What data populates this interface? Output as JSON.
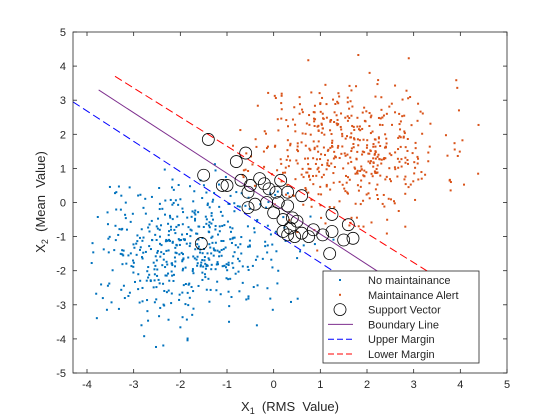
{
  "chart_data": {
    "type": "scatter",
    "xlabel": "X",
    "xlabel_sub": "1",
    "xlabel_rest": "  (RMS  Value)",
    "ylabel": "X",
    "ylabel_sub": "2",
    "ylabel_rest": "  (Mean  Value)",
    "xlim": [
      -4.3,
      5
    ],
    "ylim": [
      -5,
      5
    ],
    "xticks": [
      -4,
      -3,
      -2,
      -1,
      0,
      1,
      2,
      3,
      4,
      5
    ],
    "yticks": [
      -5,
      -4,
      -3,
      -2,
      -1,
      0,
      1,
      2,
      3,
      4,
      5
    ],
    "grid": false,
    "legend_position": "bottom-right",
    "colors": {
      "no_maintainance": "#0072BD",
      "maintainance_alert": "#D95319",
      "support_vector": "#000000",
      "boundary": "#7E2F8E",
      "upper_margin": "#0000FF",
      "lower_margin": "#FF0000",
      "axes": "#262626"
    },
    "series": [
      {
        "name": "No maintainance",
        "kind": "points",
        "distribution": {
          "n": 500,
          "mean": [
            -1.8,
            -1.4
          ],
          "std": [
            1.0,
            1.0
          ],
          "seed": 7
        },
        "range": {
          "x": [
            -3.9,
            1.3
          ],
          "y": [
            -4.6,
            1.5
          ]
        }
      },
      {
        "name": "Maintainance Alert",
        "kind": "points",
        "distribution": {
          "n": 500,
          "mean": [
            1.6,
            1.6
          ],
          "std": [
            1.0,
            1.0
          ],
          "seed": 11
        },
        "range": {
          "x": [
            -0.9,
            4.6
          ],
          "y": [
            -1.6,
            4.5
          ]
        }
      },
      {
        "name": "Support Vector",
        "kind": "circles",
        "points": [
          [
            -1.4,
            1.85
          ],
          [
            -0.8,
            1.2
          ],
          [
            -0.6,
            1.45
          ],
          [
            -1.5,
            0.8
          ],
          [
            -1.0,
            0.5
          ],
          [
            -1.1,
            0.5
          ],
          [
            -0.7,
            0.65
          ],
          [
            -0.5,
            0.5
          ],
          [
            -0.3,
            0.7
          ],
          [
            -0.2,
            0.55
          ],
          [
            -0.1,
            0.4
          ],
          [
            0.05,
            0.3
          ],
          [
            0.3,
            0.3
          ],
          [
            0.6,
            0.2
          ],
          [
            0.15,
            0.65
          ],
          [
            -0.55,
            0.3
          ],
          [
            -0.55,
            -0.15
          ],
          [
            -0.4,
            -0.05
          ],
          [
            -0.15,
            0.0
          ],
          [
            0.1,
            0.0
          ],
          [
            0.3,
            -0.1
          ],
          [
            0.0,
            -0.3
          ],
          [
            0.2,
            -0.5
          ],
          [
            0.4,
            -0.45
          ],
          [
            0.5,
            -0.55
          ],
          [
            0.35,
            -0.75
          ],
          [
            0.2,
            -0.85
          ],
          [
            0.3,
            -0.95
          ],
          [
            0.45,
            -1.0
          ],
          [
            0.6,
            -0.9
          ],
          [
            0.75,
            -1.0
          ],
          [
            0.85,
            -0.8
          ],
          [
            1.05,
            -0.95
          ],
          [
            1.25,
            -0.85
          ],
          [
            1.25,
            -0.35
          ],
          [
            1.6,
            -0.65
          ],
          [
            1.5,
            -1.1
          ],
          [
            1.7,
            -1.05
          ],
          [
            1.2,
            -1.5
          ],
          [
            -1.55,
            -1.2
          ]
        ]
      },
      {
        "name": "Boundary Line",
        "kind": "line",
        "points": [
          [
            -3.75,
            3.3
          ],
          [
            4.4,
            -3.95
          ]
        ],
        "style": "solid"
      },
      {
        "name": "Upper Margin",
        "kind": "line",
        "points": [
          [
            -4.3,
            2.95
          ],
          [
            3.4,
            -3.9
          ]
        ],
        "style": "dashed"
      },
      {
        "name": "Lower Margin",
        "kind": "line",
        "points": [
          [
            -3.4,
            3.7
          ],
          [
            4.45,
            -3.0
          ]
        ],
        "style": "dashed"
      }
    ]
  }
}
